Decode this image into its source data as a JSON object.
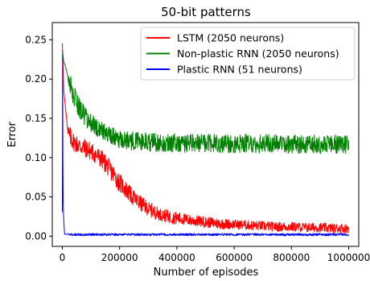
{
  "chart_data": {
    "type": "line",
    "title": "50-bit patterns",
    "xlabel": "Number of episodes",
    "ylabel": "Error",
    "xlim": [
      -35000,
      1035000
    ],
    "ylim": [
      -0.013,
      0.272
    ],
    "xticks": [
      0,
      200000,
      400000,
      600000,
      800000,
      1000000
    ],
    "xtick_labels": [
      "0",
      "200000",
      "400000",
      "600000",
      "800000",
      "1000000"
    ],
    "yticks": [
      0.0,
      0.05,
      0.1,
      0.15,
      0.2,
      0.25
    ],
    "ytick_labels": [
      "0.00",
      "0.05",
      "0.10",
      "0.15",
      "0.20",
      "0.25"
    ],
    "grid": false,
    "legend_position": "top-right",
    "series": [
      {
        "name": "LSTM (2050 neurons)",
        "color": "#ff0000",
        "x": [
          0,
          2000,
          5000,
          10000,
          20000,
          40000,
          60000,
          80000,
          100000,
          120000,
          140000,
          160000,
          180000,
          200000,
          220000,
          240000,
          260000,
          280000,
          300000,
          320000,
          340000,
          360000,
          380000,
          400000,
          450000,
          500000,
          550000,
          600000,
          650000,
          700000,
          750000,
          800000,
          850000,
          900000,
          950000,
          1000000
        ],
        "y": [
          0.255,
          0.24,
          0.2,
          0.16,
          0.13,
          0.12,
          0.115,
          0.112,
          0.108,
          0.103,
          0.097,
          0.088,
          0.078,
          0.068,
          0.06,
          0.052,
          0.045,
          0.04,
          0.035,
          0.031,
          0.028,
          0.026,
          0.024,
          0.023,
          0.02,
          0.018,
          0.016,
          0.015,
          0.014,
          0.013,
          0.012,
          0.012,
          0.011,
          0.011,
          0.01,
          0.01
        ],
        "noise": [
          0.02,
          0.02,
          0.02,
          0.02,
          0.014,
          0.012,
          0.012,
          0.012,
          0.012,
          0.012,
          0.012,
          0.012,
          0.012,
          0.012,
          0.011,
          0.011,
          0.01,
          0.01,
          0.009,
          0.009,
          0.008,
          0.008,
          0.008,
          0.008,
          0.007,
          0.007,
          0.007,
          0.006,
          0.006,
          0.006,
          0.006,
          0.006,
          0.006,
          0.006,
          0.006,
          0.006
        ]
      },
      {
        "name": "Non-plastic RNN (2050 neurons)",
        "color": "#008000",
        "x": [
          0,
          5000,
          10000,
          20000,
          40000,
          60000,
          80000,
          100000,
          120000,
          140000,
          160000,
          180000,
          200000,
          250000,
          300000,
          350000,
          400000,
          500000,
          600000,
          700000,
          800000,
          900000,
          1000000
        ],
        "y": [
          0.24,
          0.225,
          0.215,
          0.2,
          0.178,
          0.163,
          0.152,
          0.144,
          0.138,
          0.133,
          0.129,
          0.126,
          0.124,
          0.121,
          0.12,
          0.119,
          0.119,
          0.118,
          0.118,
          0.118,
          0.117,
          0.117,
          0.117
        ],
        "noise": [
          0.015,
          0.015,
          0.015,
          0.015,
          0.014,
          0.013,
          0.012,
          0.012,
          0.012,
          0.012,
          0.012,
          0.012,
          0.012,
          0.012,
          0.012,
          0.012,
          0.012,
          0.012,
          0.012,
          0.012,
          0.012,
          0.012,
          0.012
        ]
      },
      {
        "name": "Plastic RNN (51 neurons)",
        "color": "#0000ff",
        "x": [
          0,
          1000,
          2000,
          3000,
          5000,
          8000,
          15000,
          100000,
          300000,
          500000,
          700000,
          900000,
          1000000
        ],
        "y": [
          0.03,
          0.23,
          0.12,
          0.05,
          0.015,
          0.005,
          0.002,
          0.002,
          0.002,
          0.002,
          0.002,
          0.002,
          0.002
        ],
        "noise": [
          0.008,
          0.01,
          0.02,
          0.015,
          0.006,
          0.003,
          0.0015,
          0.0015,
          0.0015,
          0.0015,
          0.0015,
          0.0015,
          0.0015
        ]
      }
    ]
  }
}
